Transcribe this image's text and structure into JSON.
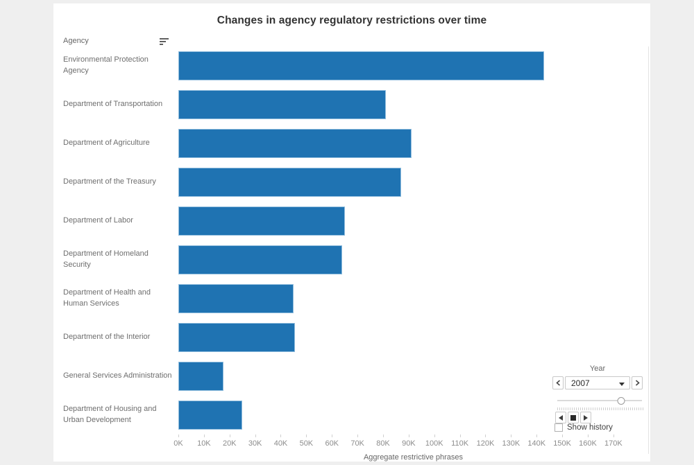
{
  "page": {
    "background": "#efefef",
    "card_background": "#ffffff"
  },
  "header": {
    "title": "Changes in agency regulatory restrictions over time"
  },
  "row_header": {
    "label": "Agency"
  },
  "chart_data": {
    "type": "bar",
    "orientation": "horizontal",
    "title": "Changes in agency regulatory restrictions over time",
    "xlabel": "Aggregate restrictive phrases",
    "ylabel": "Agency",
    "bar_color": "#1f73b2",
    "grid": false,
    "legend": "none",
    "categories": [
      "Environmental Protection Agency",
      "Department of Transportation",
      "Department of Agriculture",
      "Department of the Treasury",
      "Department of Labor",
      "Department of Homeland Security",
      "Department of Health and Human Services",
      "Department of the Interior",
      "General Services Administration",
      "Department of Housing and Urban Development"
    ],
    "values_k": [
      143,
      81,
      91,
      87,
      65,
      64,
      45,
      45.5,
      17.5,
      25
    ],
    "value_unit": "thousands of aggregate restrictive phrases",
    "x_tick_labels": [
      "0K",
      "10K",
      "20K",
      "30K",
      "40K",
      "50K",
      "60K",
      "70K",
      "80K",
      "90K",
      "100K",
      "110K",
      "120K",
      "130K",
      "140K",
      "150K",
      "160K",
      "170K"
    ],
    "x_ticks_k": [
      0,
      10,
      20,
      30,
      40,
      50,
      60,
      70,
      80,
      90,
      100,
      110,
      120,
      130,
      140,
      150,
      160,
      170
    ],
    "x_plot_max_k": 183.6
  },
  "year_control": {
    "label": "Year",
    "selected_year": "2007",
    "slider_position_pct": 75.4,
    "show_history_label": "Show history",
    "show_history_checked": false
  }
}
